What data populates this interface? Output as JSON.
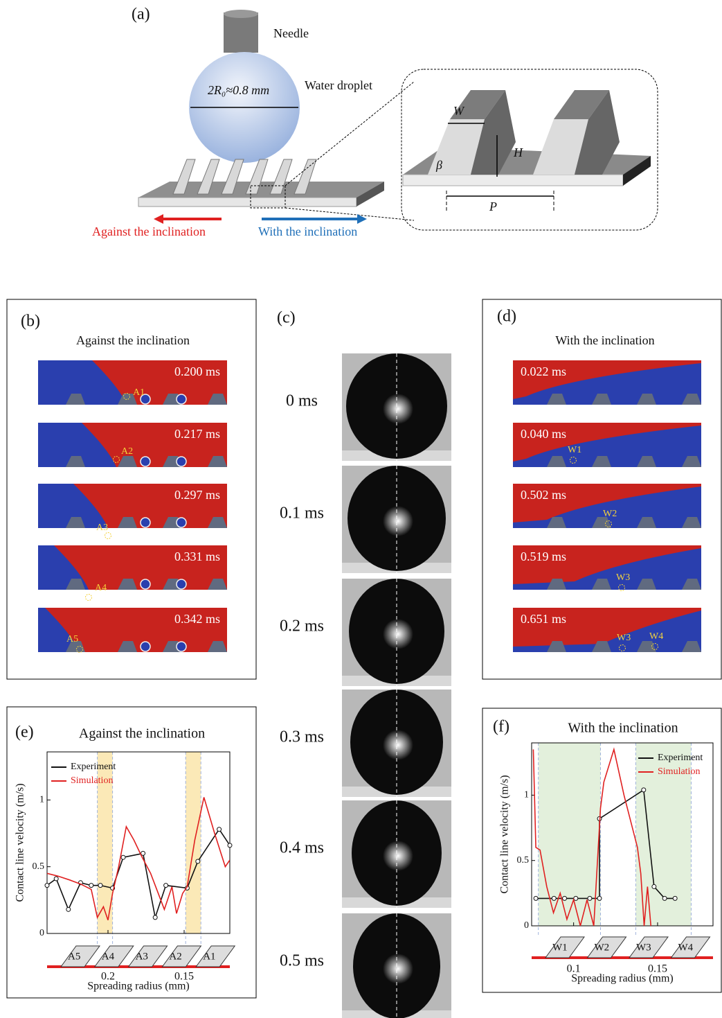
{
  "panel_a": {
    "label": "(a)",
    "needle": "Needle",
    "diameter": "2R₀≈0.8 mm",
    "droplet": "Water droplet",
    "W": "W",
    "H": "H",
    "beta": "β",
    "P": "P",
    "against": "Against the inclination",
    "with": "With the inclination"
  },
  "panel_b": {
    "label": "(b)",
    "title": "Against the inclination",
    "frames": [
      {
        "time": "0.200 ms",
        "point": "A1"
      },
      {
        "time": "0.217 ms",
        "point": "A2"
      },
      {
        "time": "0.297 ms",
        "point": "A3"
      },
      {
        "time": "0.331 ms",
        "point": "A4"
      },
      {
        "time": "0.342 ms",
        "point": "A5"
      }
    ]
  },
  "panel_c": {
    "label": "(c)",
    "times": [
      "0 ms",
      "0.1 ms",
      "0.2 ms",
      "0.3 ms",
      "0.4 ms",
      "0.5 ms"
    ]
  },
  "panel_d": {
    "label": "(d)",
    "title": "With the inclination",
    "frames": [
      {
        "time": "0.022 ms",
        "points": []
      },
      {
        "time": "0.040 ms",
        "points": [
          "W1"
        ]
      },
      {
        "time": "0.502 ms",
        "points": [
          "W2"
        ]
      },
      {
        "time": "0.519 ms",
        "points": [
          "W3"
        ]
      },
      {
        "time": "0.651 ms",
        "points": [
          "W3",
          "W4"
        ]
      }
    ]
  },
  "chart_data": [
    {
      "type": "line",
      "panel": "(e)",
      "title": "Against the inclination",
      "xlabel": "Spreading radius (mm)",
      "ylabel": "Contact line velocity (m/s)",
      "xlim": [
        0.24,
        0.12
      ],
      "ylim": [
        0,
        1.36
      ],
      "xticks": [
        0.2,
        0.15
      ],
      "yticks": [
        0,
        0.5,
        1
      ],
      "bands": [
        [
          0.207,
          0.197
        ],
        [
          0.149,
          0.139
        ]
      ],
      "band_color": "#fbe9b7",
      "legend": "upper left",
      "schematic_labels": [
        "A5",
        "A4",
        "A3",
        "A2",
        "A1"
      ],
      "series": [
        {
          "name": "Experiment",
          "color": "#111111",
          "marker": true,
          "x": [
            0.24,
            0.234,
            0.226,
            0.218,
            0.211,
            0.205,
            0.197,
            0.19,
            0.177,
            0.169,
            0.162,
            0.148,
            0.141,
            0.127,
            0.12
          ],
          "values": [
            0.36,
            0.41,
            0.18,
            0.38,
            0.36,
            0.36,
            0.34,
            0.57,
            0.6,
            0.12,
            0.36,
            0.34,
            0.54,
            0.78,
            0.66
          ]
        },
        {
          "name": "Simulation",
          "color": "#e02020",
          "marker": false,
          "x": [
            0.24,
            0.233,
            0.225,
            0.218,
            0.211,
            0.207,
            0.203,
            0.2,
            0.197,
            0.193,
            0.188,
            0.183,
            0.178,
            0.172,
            0.167,
            0.163,
            0.158,
            0.155,
            0.151,
            0.148,
            0.143,
            0.137,
            0.13,
            0.123,
            0.12
          ],
          "values": [
            0.45,
            0.43,
            0.4,
            0.37,
            0.33,
            0.12,
            0.2,
            0.1,
            0.3,
            0.5,
            0.8,
            0.7,
            0.58,
            0.45,
            0.3,
            0.18,
            0.35,
            0.15,
            0.3,
            0.35,
            0.7,
            1.02,
            0.75,
            0.5,
            0.55
          ]
        }
      ]
    },
    {
      "type": "line",
      "panel": "(f)",
      "title": "With the inclination",
      "xlabel": "Spreading radius (mm)",
      "ylabel": "Contact line velocity (m/s)",
      "xlim": [
        0.075,
        0.183
      ],
      "ylim": [
        0,
        1.4
      ],
      "xticks": [
        0.1,
        0.15
      ],
      "yticks": [
        0,
        0.5,
        1
      ],
      "bands": [
        [
          0.079,
          0.116
        ],
        [
          0.137,
          0.17
        ]
      ],
      "band_color": "#e3f0dc",
      "legend": "upper right",
      "schematic_labels": [
        "W1",
        "W2",
        "W3",
        "W4"
      ],
      "series": [
        {
          "name": "Experiment",
          "color": "#111111",
          "marker": true,
          "x": [
            0.0775,
            0.0883,
            0.0946,
            0.1013,
            0.1096,
            0.1154,
            0.1154,
            0.1417,
            0.1479,
            0.1542,
            0.1604
          ],
          "values": [
            0.21,
            0.21,
            0.21,
            0.21,
            0.21,
            0.21,
            0.82,
            1.04,
            0.3,
            0.21,
            0.21
          ]
        },
        {
          "name": "Simulation",
          "color": "#e02020",
          "marker": false,
          "x": [
            0.076,
            0.0775,
            0.08,
            0.084,
            0.088,
            0.092,
            0.096,
            0.1,
            0.104,
            0.108,
            0.112,
            0.116,
            0.118,
            0.124,
            0.13,
            0.138,
            0.14,
            0.142,
            0.144,
            0.146
          ],
          "values": [
            1.35,
            0.6,
            0.58,
            0.3,
            0.1,
            0.25,
            0.05,
            0.2,
            0,
            0.2,
            0,
            0.9,
            1.1,
            1.35,
            1,
            0.6,
            0.4,
            0,
            0.3,
            0
          ]
        }
      ]
    }
  ]
}
